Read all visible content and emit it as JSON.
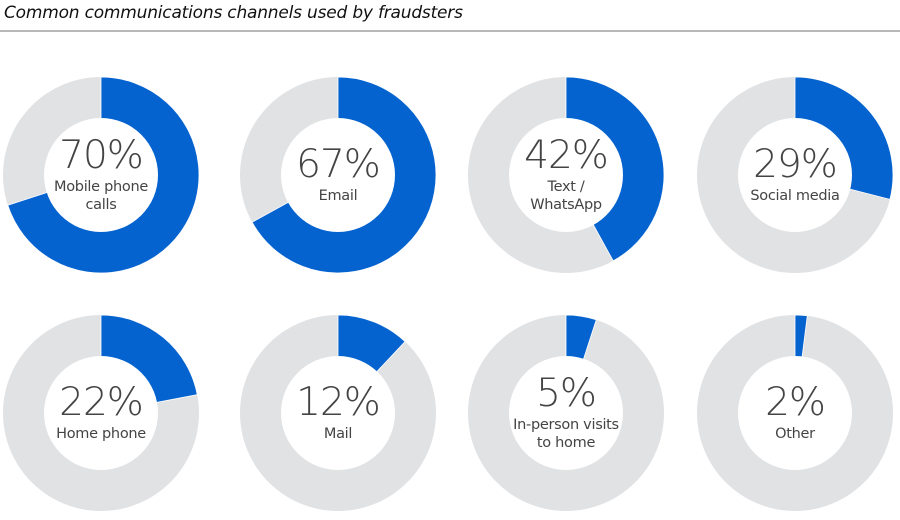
{
  "title": "Common communications channels used by fraudsters",
  "colors": {
    "filled": "#0563D0",
    "remainder": "#E1E2E4",
    "hole": "#FFFFFF",
    "text": "#444444",
    "divider": "#B8B8B8"
  },
  "charts": [
    {
      "value": 70,
      "pct_label": "70%",
      "label": "Mobile phone\ncalls"
    },
    {
      "value": 67,
      "pct_label": "67%",
      "label": "Email"
    },
    {
      "value": 42,
      "pct_label": "42%",
      "label": "Text /\nWhatsApp"
    },
    {
      "value": 29,
      "pct_label": "29%",
      "label": "Social media"
    },
    {
      "value": 22,
      "pct_label": "22%",
      "label": "Home phone"
    },
    {
      "value": 12,
      "pct_label": "12%",
      "label": "Mail"
    },
    {
      "value": 5,
      "pct_label": "5%",
      "label": "In-person visits\nto home"
    },
    {
      "value": 2,
      "pct_label": "2%",
      "label": "Other"
    }
  ],
  "chart_data": {
    "type": "pie",
    "subtype": "donut-small-multiples",
    "title": "Common communications channels used by fraudsters",
    "categories": [
      "Mobile phone calls",
      "Email",
      "Text / WhatsApp",
      "Social media",
      "Home phone",
      "Mail",
      "In-person visits to home",
      "Other"
    ],
    "values": [
      70,
      67,
      42,
      29,
      22,
      12,
      5,
      2
    ],
    "unit": "%",
    "layout": {
      "rows": 2,
      "cols": 4
    },
    "legend": "none",
    "grid": false,
    "xlabel": "",
    "ylabel": ""
  }
}
